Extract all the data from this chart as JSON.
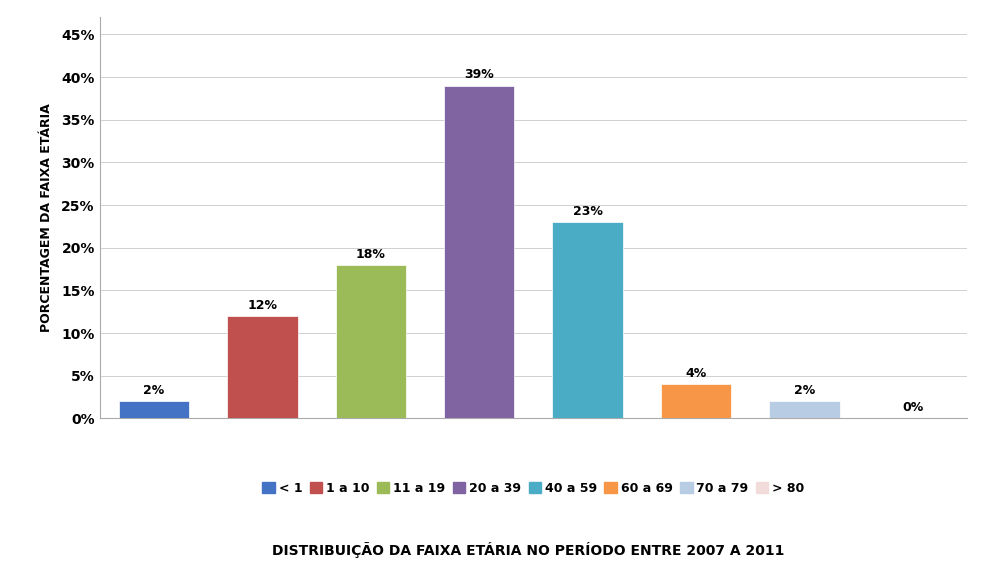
{
  "categories": [
    "< 1",
    "1 a 10",
    "11 a 19",
    "20 a 39",
    "40 a 59",
    "60 a 69",
    "70 a 79",
    "> 80"
  ],
  "values": [
    2,
    12,
    18,
    39,
    23,
    4,
    2,
    0
  ],
  "bar_colors": [
    "#4472C4",
    "#C0504D",
    "#9BBB59",
    "#8064A2",
    "#4BACC6",
    "#F79646",
    "#B8CCE4",
    "#F2DCDB"
  ],
  "ylabel": "PORCENTAGEM DA FAIXA ETÁRIA",
  "xlabel": "DISTRIBUIÇÃO DA FAIXA ETÁRIA NO PERÍODO ENTRE 2007 A 2011",
  "yticks": [
    0,
    5,
    10,
    15,
    20,
    25,
    30,
    35,
    40,
    45
  ],
  "ytick_labels": [
    "0%",
    "5%",
    "10%",
    "15%",
    "20%",
    "25%",
    "30%",
    "35%",
    "40%",
    "45%"
  ],
  "ylim": [
    0,
    47
  ],
  "background_color": "#FFFFFF",
  "grid_color": "#D0D0D0",
  "legend_labels": [
    "< 1",
    "1 a 10",
    "11 a 19",
    "20 a 39",
    "40 a 59",
    "60 a 69",
    "70 a 79",
    "> 80"
  ],
  "bar_label_fontsize": 9,
  "ylabel_fontsize": 9,
  "xlabel_fontsize": 10,
  "legend_fontsize": 9,
  "tick_fontsize": 10
}
